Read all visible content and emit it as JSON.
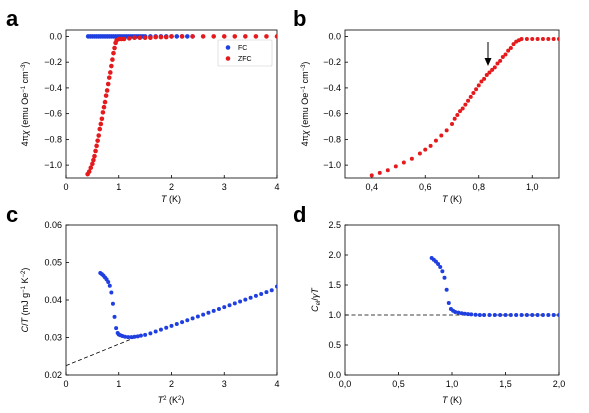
{
  "chart_data": [
    {
      "panel": "a",
      "type": "scatter",
      "xlabel": "T (K)",
      "ylabel": "4πχ (emu Oe⁻¹ cm⁻³)",
      "xlim": [
        0,
        4
      ],
      "ylim": [
        -1.1,
        0.05
      ],
      "xticks": [
        "0",
        "1",
        "2",
        "3",
        "4"
      ],
      "yticks": [
        "0.0",
        "−0.2",
        "−0.4",
        "−0.6",
        "−0.8",
        "−1.0"
      ],
      "legend": "top-right",
      "series": [
        {
          "name": "FC",
          "color": "#1f3fe0",
          "x": [
            0.42,
            0.46,
            0.5,
            0.54,
            0.58,
            0.62,
            0.66,
            0.7,
            0.74,
            0.78,
            0.82,
            0.86,
            0.9,
            0.94,
            0.98,
            1.02,
            1.06,
            1.1,
            1.14,
            1.18,
            1.22,
            1.26,
            1.3,
            1.34,
            1.38,
            1.42,
            1.46,
            1.5,
            1.6,
            1.7,
            1.8,
            1.9,
            2.0,
            2.1,
            2.2,
            2.3,
            2.4
          ],
          "y": [
            0,
            0,
            0,
            0,
            0,
            0,
            0,
            0,
            0,
            0,
            0,
            0,
            0,
            0,
            0,
            0,
            0,
            0,
            0,
            0,
            0,
            0,
            0,
            0,
            0,
            0,
            0,
            0,
            0,
            0,
            0,
            0,
            0,
            0,
            0,
            0,
            0
          ]
        },
        {
          "name": "ZFC",
          "color": "#e41a1c",
          "x": [
            0.41,
            0.44,
            0.47,
            0.5,
            0.52,
            0.54,
            0.56,
            0.58,
            0.6,
            0.62,
            0.64,
            0.66,
            0.68,
            0.7,
            0.72,
            0.74,
            0.76,
            0.78,
            0.8,
            0.82,
            0.84,
            0.86,
            0.88,
            0.9,
            0.92,
            0.94,
            0.96,
            1.0,
            1.05,
            1.1,
            1.2,
            1.3,
            1.4,
            1.5,
            1.6,
            1.7,
            1.8,
            1.9,
            2.0,
            2.2,
            2.4,
            2.6,
            2.8,
            3.0,
            3.2,
            3.4,
            3.6,
            3.8,
            4.0
          ],
          "y": [
            -1.07,
            -1.05,
            -1.02,
            -0.99,
            -0.96,
            -0.93,
            -0.89,
            -0.85,
            -0.81,
            -0.77,
            -0.72,
            -0.68,
            -0.64,
            -0.59,
            -0.55,
            -0.51,
            -0.46,
            -0.42,
            -0.37,
            -0.32,
            -0.28,
            -0.23,
            -0.18,
            -0.13,
            -0.09,
            -0.05,
            -0.03,
            -0.02,
            -0.02,
            -0.02,
            -0.015,
            -0.01,
            -0.01,
            -0.01,
            -0.01,
            -0.005,
            -0.005,
            -0.005,
            0,
            0,
            0,
            0,
            0,
            0,
            0,
            0,
            0,
            0,
            0
          ]
        }
      ]
    },
    {
      "panel": "b",
      "type": "scatter",
      "xlabel": "T (K)",
      "ylabel": "4πχ (emu Oe⁻¹ cm⁻³)",
      "xlim": [
        0.3,
        1.1
      ],
      "ylim": [
        -1.1,
        0.05
      ],
      "xticks": [
        "0,4",
        "0,6",
        "0,8",
        "1,0"
      ],
      "yticks": [
        "0.0",
        "−0.2",
        "−0.4",
        "−0.6",
        "−0.8",
        "−1.0"
      ],
      "annotation": "arrow at T ≈ 0.83 K",
      "series": [
        {
          "name": "ZFC",
          "color": "#e41a1c",
          "x": [
            0.4,
            0.43,
            0.46,
            0.49,
            0.52,
            0.55,
            0.58,
            0.6,
            0.62,
            0.64,
            0.66,
            0.68,
            0.7,
            0.71,
            0.72,
            0.73,
            0.74,
            0.75,
            0.76,
            0.77,
            0.78,
            0.79,
            0.8,
            0.81,
            0.82,
            0.83,
            0.84,
            0.85,
            0.86,
            0.87,
            0.88,
            0.89,
            0.9,
            0.91,
            0.92,
            0.93,
            0.94,
            0.95,
            0.96,
            0.98,
            1.0,
            1.02,
            1.04,
            1.06,
            1.08,
            1.1
          ],
          "y": [
            -1.08,
            -1.06,
            -1.04,
            -1.01,
            -0.98,
            -0.95,
            -0.91,
            -0.88,
            -0.85,
            -0.81,
            -0.77,
            -0.73,
            -0.68,
            -0.64,
            -0.61,
            -0.58,
            -0.56,
            -0.53,
            -0.5,
            -0.47,
            -0.44,
            -0.41,
            -0.38,
            -0.35,
            -0.33,
            -0.3,
            -0.28,
            -0.26,
            -0.24,
            -0.21,
            -0.19,
            -0.16,
            -0.14,
            -0.11,
            -0.09,
            -0.06,
            -0.04,
            -0.03,
            -0.02,
            -0.02,
            -0.02,
            -0.02,
            -0.02,
            -0.02,
            -0.02,
            -0.02
          ]
        }
      ]
    },
    {
      "panel": "c",
      "type": "scatter",
      "xlabel": "T² (K²)",
      "ylabel": "C/T (mJ g⁻¹ K⁻²)",
      "xlim": [
        0,
        4
      ],
      "ylim": [
        0.02,
        0.06
      ],
      "xticks": [
        "0",
        "1",
        "2",
        "3",
        "4"
      ],
      "yticks": [
        "0.02",
        "0.03",
        "0.04",
        "0.05",
        "0.06"
      ],
      "fit_line": {
        "x": [
          0,
          1.4
        ],
        "y": [
          0.0225,
          0.0305
        ]
      },
      "series": [
        {
          "color": "#1f3fe0",
          "x": [
            0.65,
            0.68,
            0.71,
            0.74,
            0.77,
            0.8,
            0.83,
            0.86,
            0.89,
            0.92,
            0.95,
            0.98,
            1.0,
            1.03,
            1.07,
            1.12,
            1.18,
            1.24,
            1.3,
            1.36,
            1.42,
            1.5,
            1.6,
            1.7,
            1.8,
            1.9,
            2.0,
            2.1,
            2.2,
            2.3,
            2.4,
            2.5,
            2.6,
            2.7,
            2.8,
            2.9,
            3.0,
            3.1,
            3.2,
            3.3,
            3.4,
            3.5,
            3.6,
            3.7,
            3.8,
            3.9,
            4.0
          ],
          "y": [
            0.0472,
            0.0469,
            0.0465,
            0.046,
            0.0455,
            0.0448,
            0.0438,
            0.042,
            0.039,
            0.0355,
            0.0325,
            0.0312,
            0.0308,
            0.0306,
            0.0304,
            0.0302,
            0.0301,
            0.0301,
            0.0302,
            0.0303,
            0.0305,
            0.0307,
            0.0311,
            0.0316,
            0.0321,
            0.0326,
            0.0331,
            0.0336,
            0.0341,
            0.0346,
            0.0351,
            0.0356,
            0.0361,
            0.0366,
            0.0371,
            0.0376,
            0.0381,
            0.0386,
            0.0391,
            0.0396,
            0.0401,
            0.0406,
            0.0411,
            0.0416,
            0.0421,
            0.0426,
            0.0436
          ]
        }
      ]
    },
    {
      "panel": "d",
      "type": "scatter",
      "xlabel": "T (K)",
      "ylabel": "Cel/γT",
      "xlim": [
        0,
        2.0
      ],
      "ylim": [
        0,
        2.5
      ],
      "xticks": [
        "0,0",
        "0,5",
        "1,0",
        "1,5",
        "2,0"
      ],
      "yticks": [
        "0.0",
        "0.5",
        "1.0",
        "1.5",
        "2.0",
        "2.5"
      ],
      "ref_line_y": 1.0,
      "series": [
        {
          "color": "#1f3fe0",
          "x": [
            0.81,
            0.83,
            0.85,
            0.87,
            0.89,
            0.91,
            0.93,
            0.95,
            0.97,
            0.99,
            1.01,
            1.03,
            1.06,
            1.09,
            1.12,
            1.15,
            1.18,
            1.22,
            1.26,
            1.3,
            1.35,
            1.4,
            1.45,
            1.5,
            1.55,
            1.6,
            1.65,
            1.7,
            1.75,
            1.8,
            1.85,
            1.9,
            1.95,
            2.0
          ],
          "y": [
            1.95,
            1.92,
            1.89,
            1.85,
            1.8,
            1.73,
            1.62,
            1.42,
            1.2,
            1.1,
            1.07,
            1.05,
            1.04,
            1.03,
            1.02,
            1.015,
            1.01,
            1.005,
            1.0,
            1.0,
            1.0,
            1.0,
            1.0,
            1.0,
            1.0,
            1.0,
            1.0,
            1.0,
            1.0,
            1.0,
            1.0,
            1.0,
            1.0,
            1.0
          ]
        }
      ]
    }
  ]
}
